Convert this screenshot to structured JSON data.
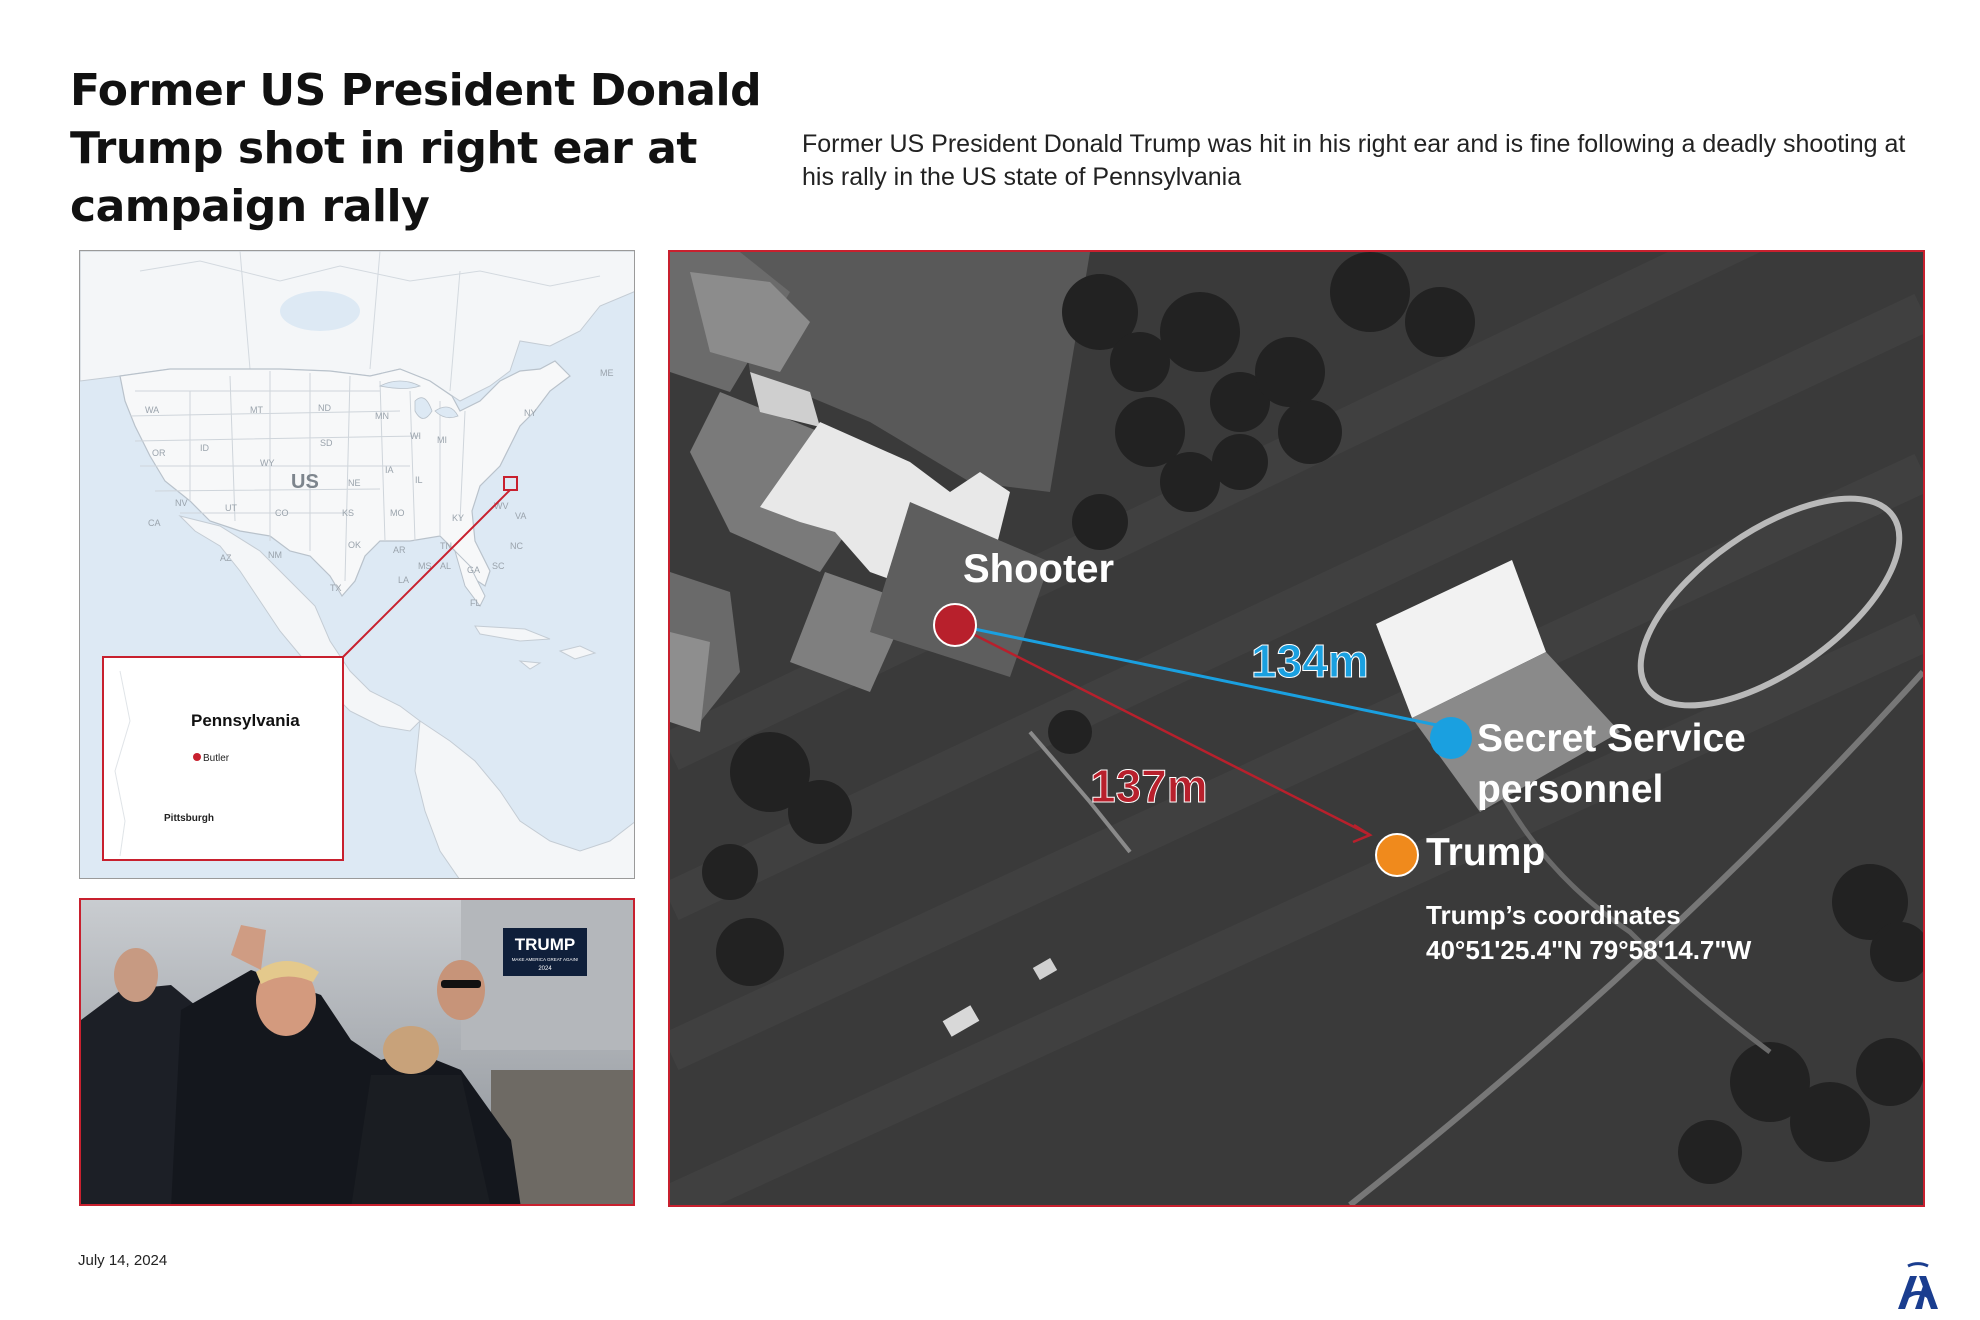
{
  "header": {
    "title": "Former US President Donald Trump shot in right ear at campaign rally",
    "subtitle": "Former US President Donald Trump was hit in his right ear and is fine following a deadly shooting at his rally in the US state of Pennsylvania"
  },
  "locator_map": {
    "country_label": "US",
    "state_codes": [
      "WA",
      "MT",
      "ND",
      "MN",
      "OR",
      "SD",
      "ID",
      "WY",
      "NV",
      "UT",
      "NE",
      "IA",
      "IL",
      "CO",
      "KS",
      "MO",
      "CA",
      "AZ",
      "NM",
      "OK",
      "AR",
      "TX",
      "LA",
      "MS",
      "AL",
      "GA",
      "NC",
      "TN",
      "KY",
      "VA",
      "MI",
      "WI",
      "WV",
      "SC",
      "NY",
      "ME",
      "FL"
    ],
    "inset": {
      "state_label": "Pennsylvania",
      "city_label": "Butler",
      "nearby_city_label": "Pittsburgh"
    }
  },
  "aerial": {
    "shooter_label": "Shooter",
    "secret_service_label_line1": "Secret Service",
    "secret_service_label_line2": "personnel",
    "trump_label": "Trump",
    "coordinates_label": "Trump’s coordinates",
    "coordinates_value": "40°51'25.4\"N 79°58'14.7\"W",
    "distance_to_secret_service": "134m",
    "distance_to_trump": "137m",
    "colors": {
      "shooter": "#b8202c",
      "secret_service": "#1aa0e0",
      "trump": "#f08a1c",
      "frame": "#c8202e"
    }
  },
  "photo": {
    "sign_title": "TRUMP",
    "sign_slogan": "MAKE AMERICA GREAT AGAIN!",
    "sign_year": "2024"
  },
  "footer": {
    "date": "July 14, 2024",
    "logo_icon": "aa-logo-icon"
  }
}
